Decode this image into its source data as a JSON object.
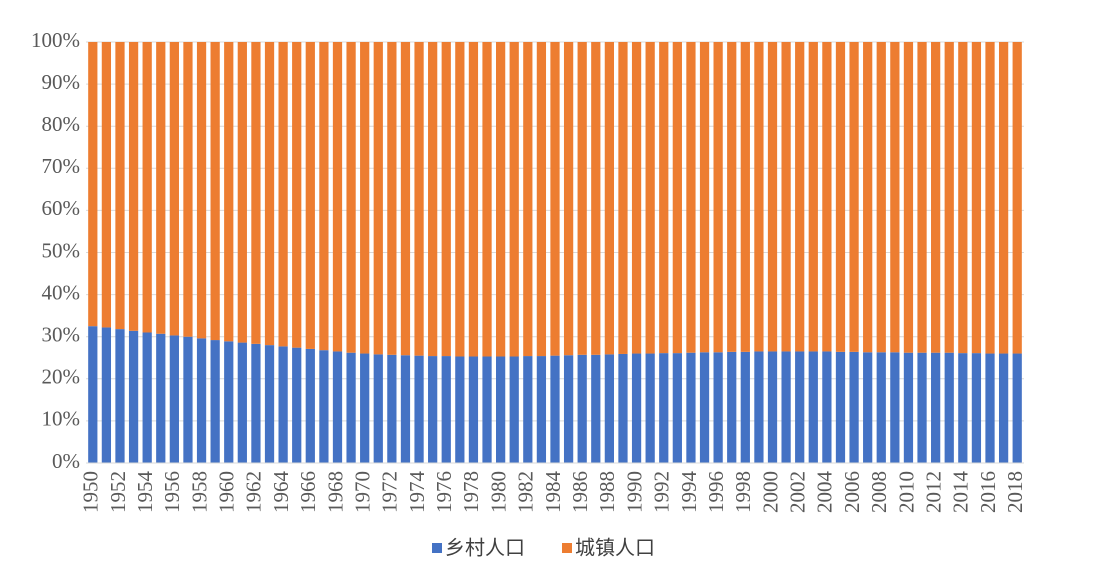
{
  "chart_data": {
    "type": "stacked_bar_percent",
    "categories": [
      "1950",
      null,
      "1952",
      null,
      "1954",
      null,
      "1956",
      null,
      "1958",
      null,
      "1960",
      null,
      "1962",
      null,
      "1964",
      null,
      "1966",
      null,
      "1968",
      null,
      "1970",
      null,
      "1972",
      null,
      "1974",
      null,
      "1976",
      null,
      "1978",
      null,
      "1980",
      null,
      "1982",
      null,
      "1984",
      null,
      "1986",
      null,
      "1988",
      null,
      "1990",
      null,
      "1992",
      null,
      "1994",
      null,
      "1996",
      null,
      "1998",
      null,
      "2000",
      null,
      "2002",
      null,
      "2004",
      null,
      "2006",
      null,
      "2008",
      null,
      "2010",
      null,
      "2012",
      null,
      "2014",
      null,
      "2016",
      null,
      "2018"
    ],
    "series": [
      {
        "name": "乡村人口",
        "color": "#4472c4",
        "values": [
          32.5,
          32.2,
          31.8,
          31.4,
          31.0,
          30.7,
          30.3,
          30.0,
          29.6,
          29.2,
          28.9,
          28.6,
          28.3,
          28.0,
          27.7,
          27.4,
          27.1,
          26.8,
          26.5,
          26.2,
          26.0,
          25.8,
          25.7,
          25.6,
          25.5,
          25.4,
          25.4,
          25.3,
          25.3,
          25.3,
          25.3,
          25.3,
          25.4,
          25.4,
          25.5,
          25.6,
          25.7,
          25.7,
          25.8,
          25.9,
          26.0,
          26.0,
          26.1,
          26.1,
          26.2,
          26.3,
          26.3,
          26.4,
          26.4,
          26.5,
          26.5,
          26.5,
          26.5,
          26.5,
          26.5,
          26.4,
          26.4,
          26.3,
          26.3,
          26.3,
          26.2,
          26.2,
          26.2,
          26.2,
          26.1,
          26.1,
          26.0,
          26.0,
          26.0
        ]
      },
      {
        "name": "城镇人口",
        "color": "#ed7d31",
        "values": [
          67.5,
          67.8,
          68.2,
          68.6,
          69.0,
          69.3,
          69.7,
          70.0,
          70.4,
          70.8,
          71.1,
          71.4,
          71.7,
          72.0,
          72.3,
          72.6,
          72.9,
          73.2,
          73.5,
          73.8,
          74.0,
          74.2,
          74.3,
          74.4,
          74.5,
          74.6,
          74.6,
          74.7,
          74.7,
          74.7,
          74.7,
          74.7,
          74.6,
          74.6,
          74.5,
          74.4,
          74.3,
          74.3,
          74.2,
          74.1,
          74.0,
          74.0,
          73.9,
          73.9,
          73.8,
          73.7,
          73.7,
          73.6,
          73.6,
          73.5,
          73.5,
          73.5,
          73.5,
          73.5,
          73.5,
          73.6,
          73.6,
          73.7,
          73.7,
          73.7,
          73.8,
          73.8,
          73.8,
          73.8,
          73.9,
          73.9,
          74.0,
          74.0,
          74.0
        ]
      }
    ],
    "ylim": [
      0,
      100
    ],
    "yticks": [
      {
        "value": 0,
        "label": "0%"
      },
      {
        "value": 10,
        "label": "10%"
      },
      {
        "value": 20,
        "label": "20%"
      },
      {
        "value": 30,
        "label": "30%"
      },
      {
        "value": 40,
        "label": "40%"
      },
      {
        "value": 50,
        "label": "50%"
      },
      {
        "value": 60,
        "label": "60%"
      },
      {
        "value": 70,
        "label": "70%"
      },
      {
        "value": 80,
        "label": "80%"
      },
      {
        "value": 90,
        "label": "90%"
      },
      {
        "value": 100,
        "label": "100%"
      }
    ],
    "grid": true,
    "legend": "bottom"
  }
}
